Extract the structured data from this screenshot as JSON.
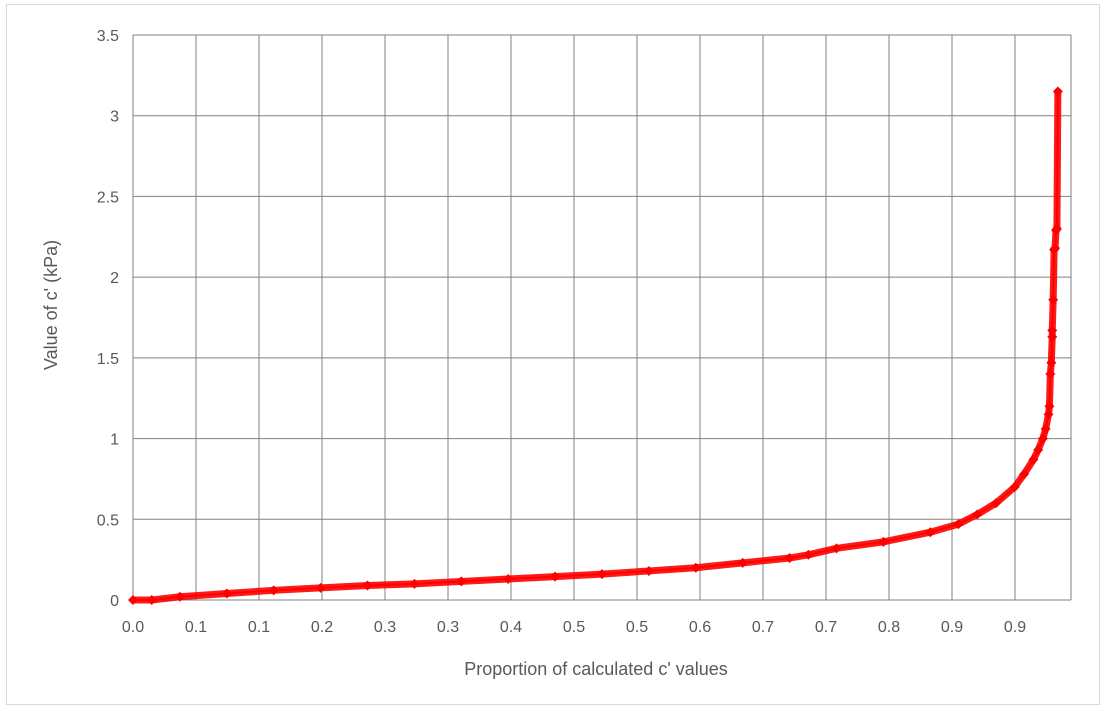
{
  "chart_data": {
    "type": "scatter",
    "title": "",
    "xlabel": "Proportion of calculated c' values",
    "ylabel": "Value of c' (kPa)",
    "xlim": [
      0,
      1.0
    ],
    "ylim": [
      0,
      3.5
    ],
    "x_tick_labels": [
      "0.0",
      "0.1",
      "0.1",
      "0.2",
      "0.3",
      "0.3",
      "0.4",
      "0.5",
      "0.5",
      "0.6",
      "0.7",
      "0.7",
      "0.8",
      "0.9",
      "0.9"
    ],
    "y_tick_labels": [
      "0",
      "0.5",
      "1",
      "1.5",
      "2",
      "2.5",
      "3",
      "3.5"
    ],
    "y_tick_values": [
      0,
      0.5,
      1,
      1.5,
      2,
      2.5,
      3,
      3.5
    ],
    "grid": true,
    "series": [
      {
        "color": "#ff0000",
        "marker": "diamond",
        "x": [
          0.0,
          0.02,
          0.05,
          0.1,
          0.15,
          0.2,
          0.25,
          0.3,
          0.35,
          0.4,
          0.45,
          0.5,
          0.55,
          0.6,
          0.65,
          0.7,
          0.72,
          0.75,
          0.8,
          0.85,
          0.88,
          0.9,
          0.92,
          0.94,
          0.95,
          0.96,
          0.965,
          0.97,
          0.973,
          0.976,
          0.977,
          0.978,
          0.979,
          0.98,
          0.98,
          0.981,
          0.982,
          0.983,
          0.984,
          0.985,
          0.986
        ],
        "y": [
          0.0,
          0.0,
          0.02,
          0.04,
          0.06,
          0.075,
          0.09,
          0.1,
          0.115,
          0.13,
          0.145,
          0.16,
          0.18,
          0.2,
          0.23,
          0.26,
          0.28,
          0.32,
          0.36,
          0.42,
          0.47,
          0.53,
          0.6,
          0.7,
          0.78,
          0.87,
          0.93,
          1.0,
          1.06,
          1.15,
          1.2,
          1.4,
          1.47,
          1.63,
          1.67,
          1.86,
          2.17,
          2.18,
          2.29,
          2.3,
          3.15
        ]
      }
    ]
  }
}
